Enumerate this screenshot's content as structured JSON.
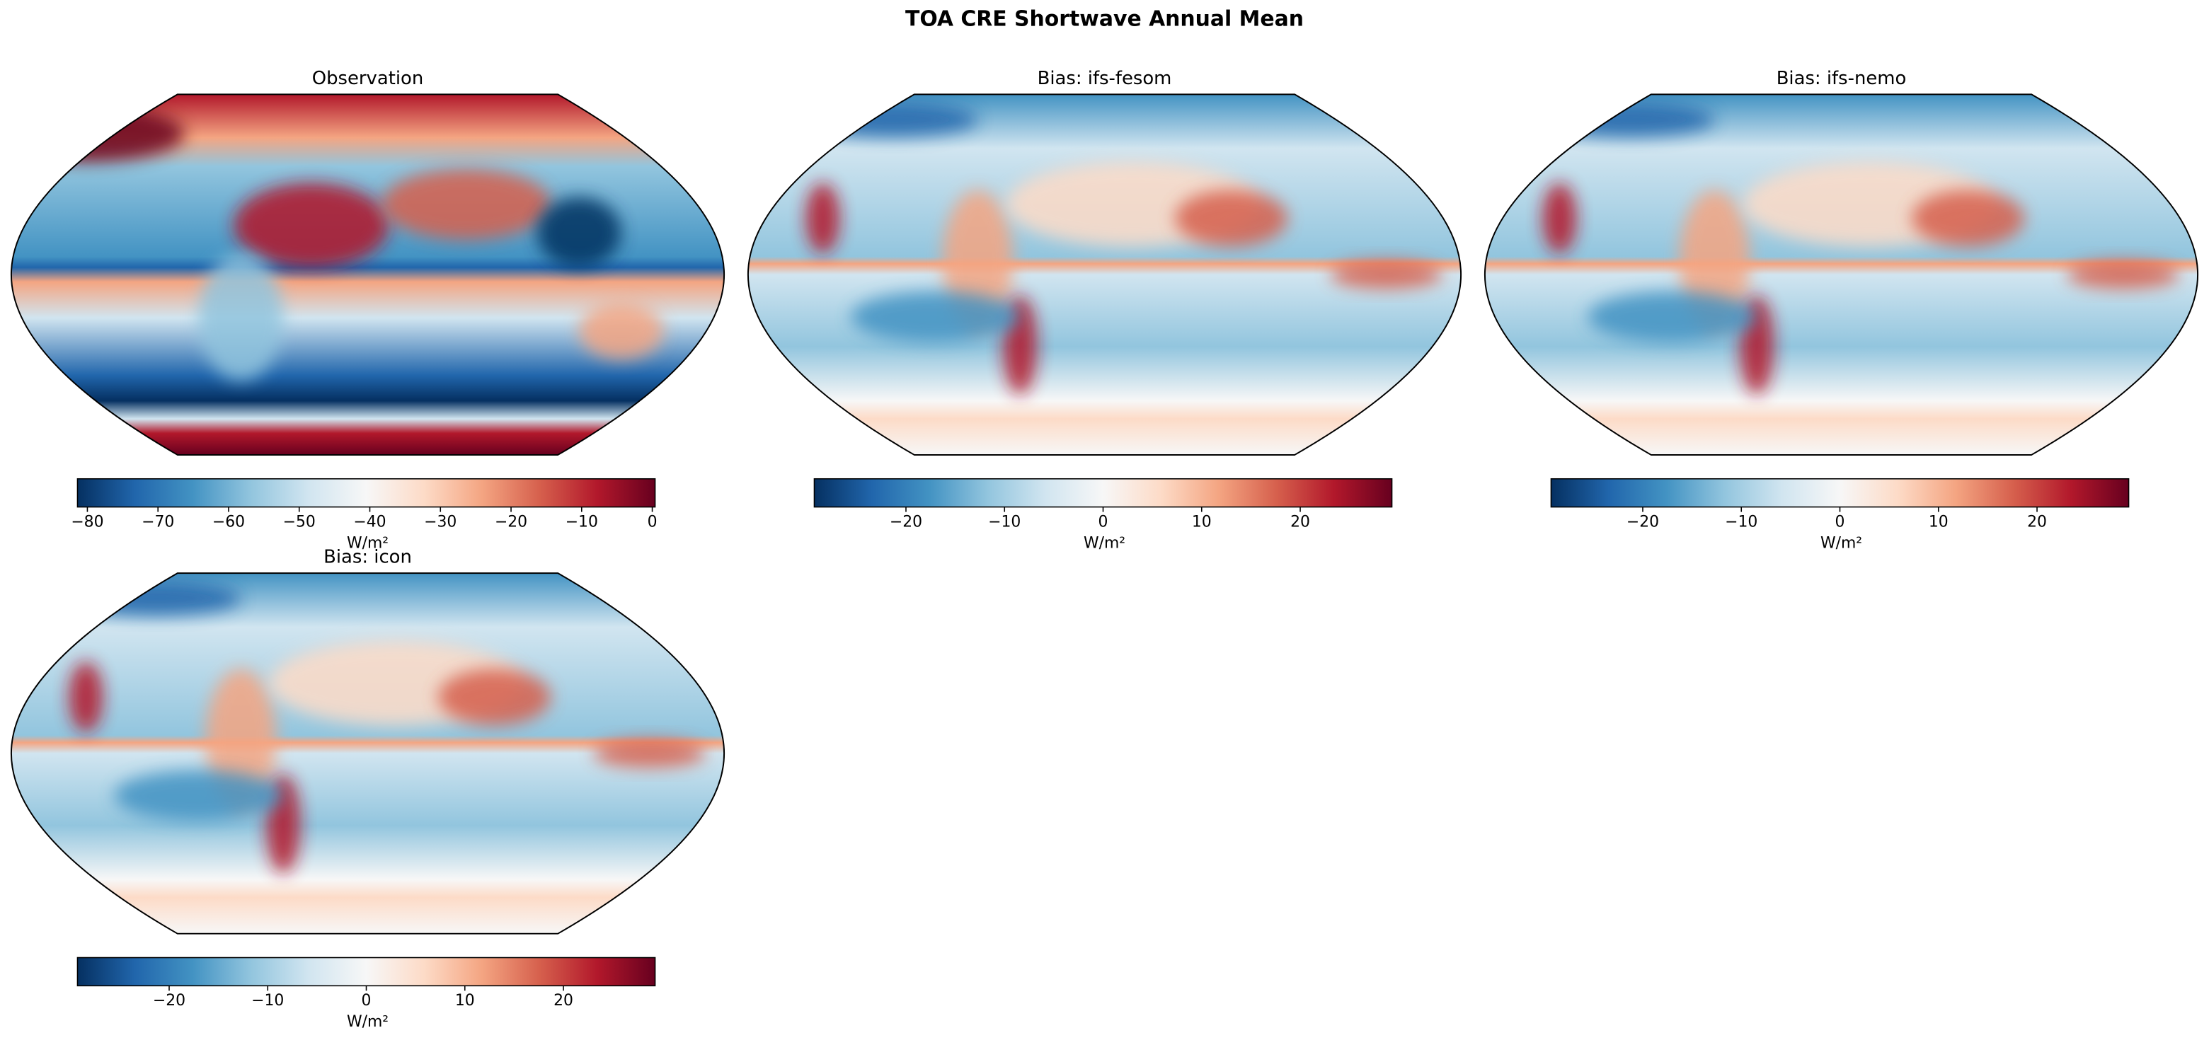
{
  "title": "TOA CRE Shortwave Annual Mean",
  "panels": [
    {
      "title": "Observation",
      "colorbar": {
        "lim": [
          -81.4,
          0.4
        ],
        "ticks": [
          {
            "value": -80,
            "label": "−80"
          },
          {
            "value": -70,
            "label": "−70"
          },
          {
            "value": -60,
            "label": "−60"
          },
          {
            "value": -50,
            "label": "−50"
          },
          {
            "value": -40,
            "label": "−40"
          },
          {
            "value": -30,
            "label": "−30"
          },
          {
            "value": -20,
            "label": "−20"
          },
          {
            "value": -10,
            "label": "−10"
          },
          0
        ],
        "label": "W/m²"
      }
    },
    {
      "title": "Bias: ifs-fesom",
      "colorbar": {
        "lim": [
          -29.3,
          29.3
        ],
        "ticks": [
          {
            "value": -20,
            "label": "−20"
          },
          {
            "value": -10,
            "label": "−10"
          },
          0,
          10,
          20
        ],
        "label": "W/m²"
      }
    },
    {
      "title": "Bias: ifs-nemo",
      "colorbar": {
        "lim": [
          -29.3,
          29.3
        ],
        "ticks": [
          {
            "value": -20,
            "label": "−20"
          },
          {
            "value": -10,
            "label": "−10"
          },
          0,
          10,
          20
        ],
        "label": "W/m²"
      }
    },
    {
      "title": "Bias: icon",
      "colorbar": {
        "lim": [
          -29.3,
          29.3
        ],
        "ticks": [
          {
            "value": -20,
            "label": "−20"
          },
          {
            "value": -10,
            "label": "−10"
          },
          0,
          10,
          20
        ],
        "label": "W/m²"
      }
    }
  ]
}
